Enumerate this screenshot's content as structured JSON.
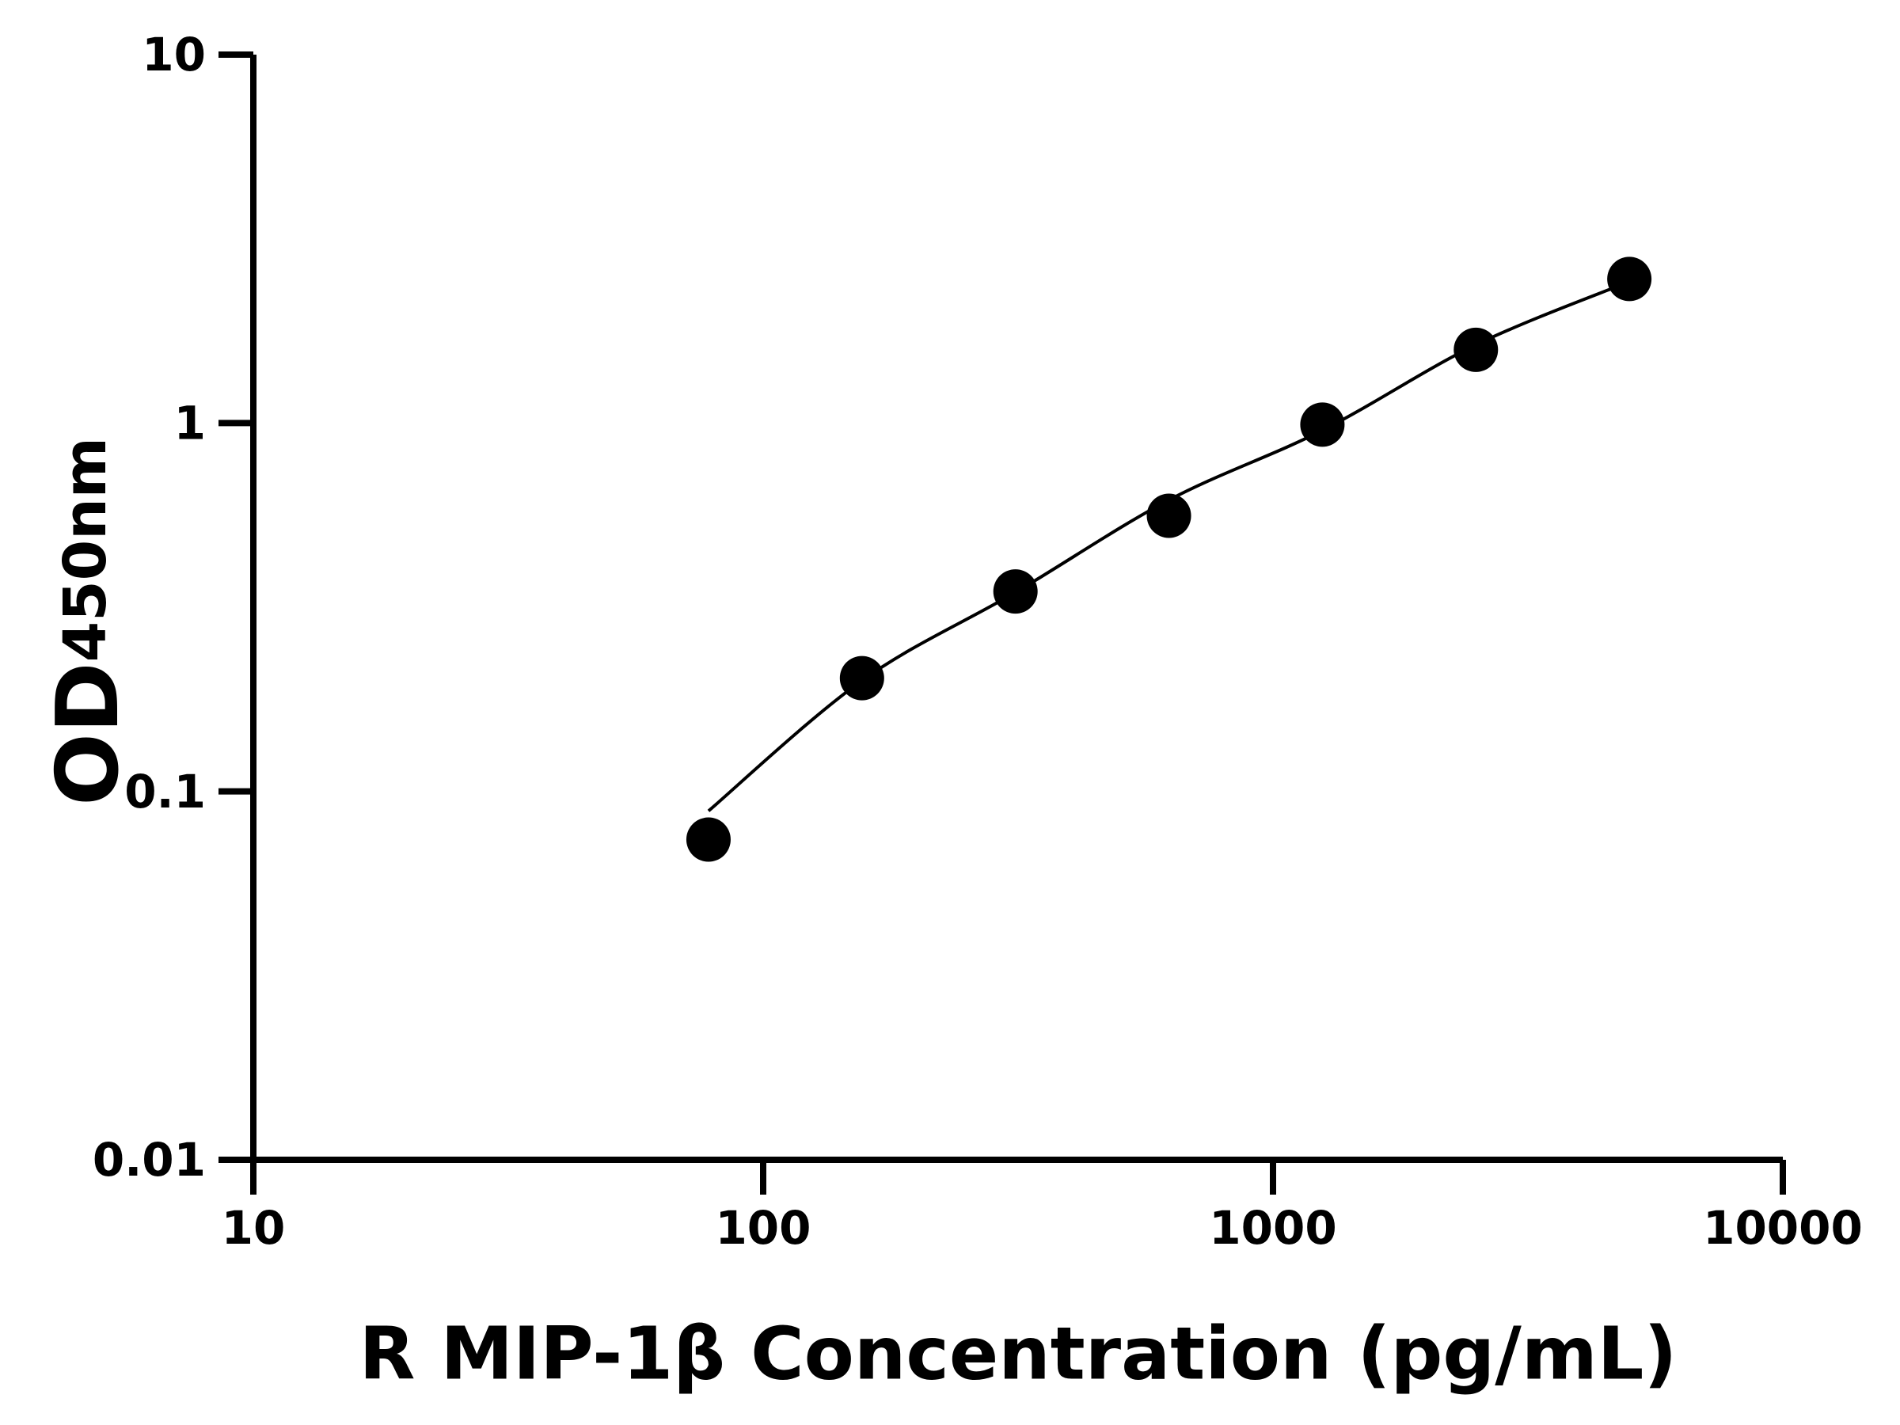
{
  "chart_data": {
    "type": "scatter",
    "xlabel": "R MIP-1β Concentration (pg/mL)",
    "ylabel": "OD",
    "ylabel_sub": "450nm",
    "x": [
      78.125,
      156.25,
      312.5,
      625,
      1250,
      2500,
      5000
    ],
    "values": [
      0.074,
      0.203,
      0.349,
      0.56,
      0.99,
      1.58,
      2.46
    ],
    "color": "#000000",
    "curve": {
      "x": [
        78.125,
        156.25,
        312.5,
        625,
        1250,
        2500,
        5000
      ],
      "y": [
        0.0885,
        0.2,
        0.347,
        0.618,
        0.955,
        1.63,
        2.42
      ]
    },
    "xscale": "log",
    "yscale": "log",
    "xlim": [
      10,
      10000
    ],
    "ylim": [
      0.01,
      10
    ],
    "xticks": [
      10,
      100,
      1000,
      10000
    ],
    "yticks": [
      0.01,
      0.1,
      1,
      10
    ],
    "grid": false
  }
}
